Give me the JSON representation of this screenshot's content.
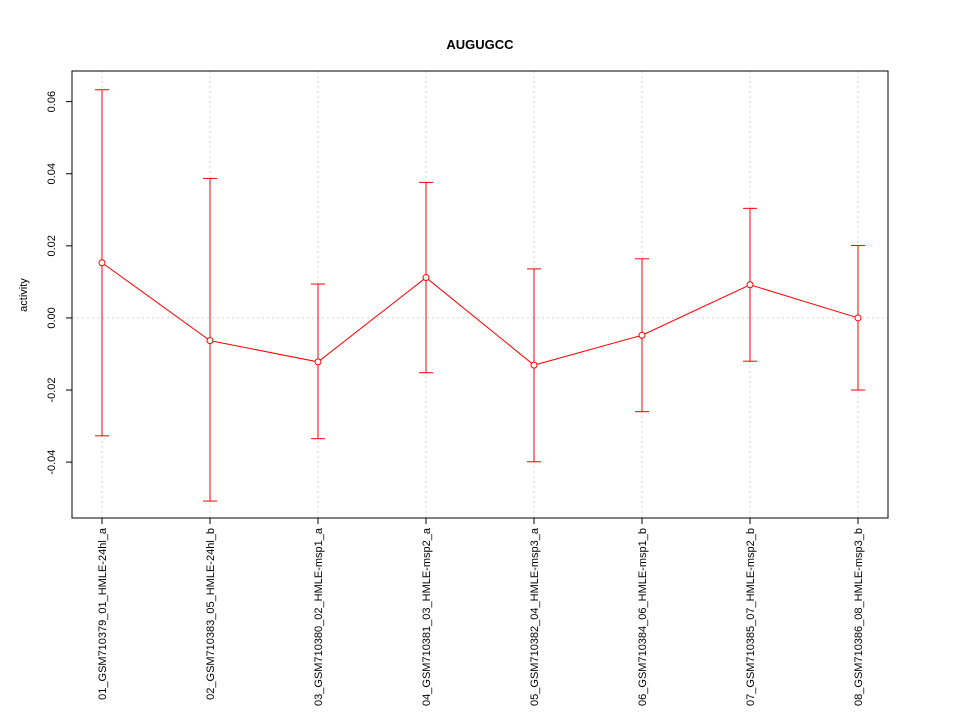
{
  "chart_data": {
    "type": "line",
    "title": "AUGUGCC",
    "xlabel": "",
    "ylabel": "activity",
    "categories": [
      "01_GSM710379_01_HMLE-24hl_a",
      "02_GSM710383_05_HMLE-24hl_b",
      "03_GSM710380_02_HMLE-msp1_a",
      "04_GSM710381_03_HMLE-msp2_a",
      "05_GSM710382_04_HMLE-msp3_a",
      "06_GSM710384_06_HMLE-msp1_b",
      "07_GSM710385_07_HMLE-msp2_b",
      "08_GSM710386_08_HMLE-msp3_b"
    ],
    "series": [
      {
        "values": [
          0.0153,
          -0.0063,
          -0.0122,
          0.0112,
          -0.0131,
          -0.0048,
          0.0092,
          0.0
        ],
        "upper": [
          0.0633,
          0.0387,
          0.0094,
          0.0376,
          0.0136,
          0.0164,
          0.0304,
          0.0201
        ],
        "lower": [
          -0.0327,
          -0.0508,
          -0.0335,
          -0.0152,
          -0.0399,
          -0.026,
          -0.012,
          -0.02
        ],
        "color": "#ff0000"
      }
    ],
    "yticks": [
      -0.04,
      -0.02,
      0.0,
      0.02,
      0.04,
      0.06
    ],
    "ytick_labels": [
      "-0.04",
      "-0.02",
      "0.00",
      "0.02",
      "0.04",
      "0.06"
    ],
    "ylim": [
      -0.0555,
      0.0685
    ],
    "grid": true,
    "grid_color": "#d3d3d3",
    "reference_line_y": 0.0,
    "legend": "none"
  }
}
